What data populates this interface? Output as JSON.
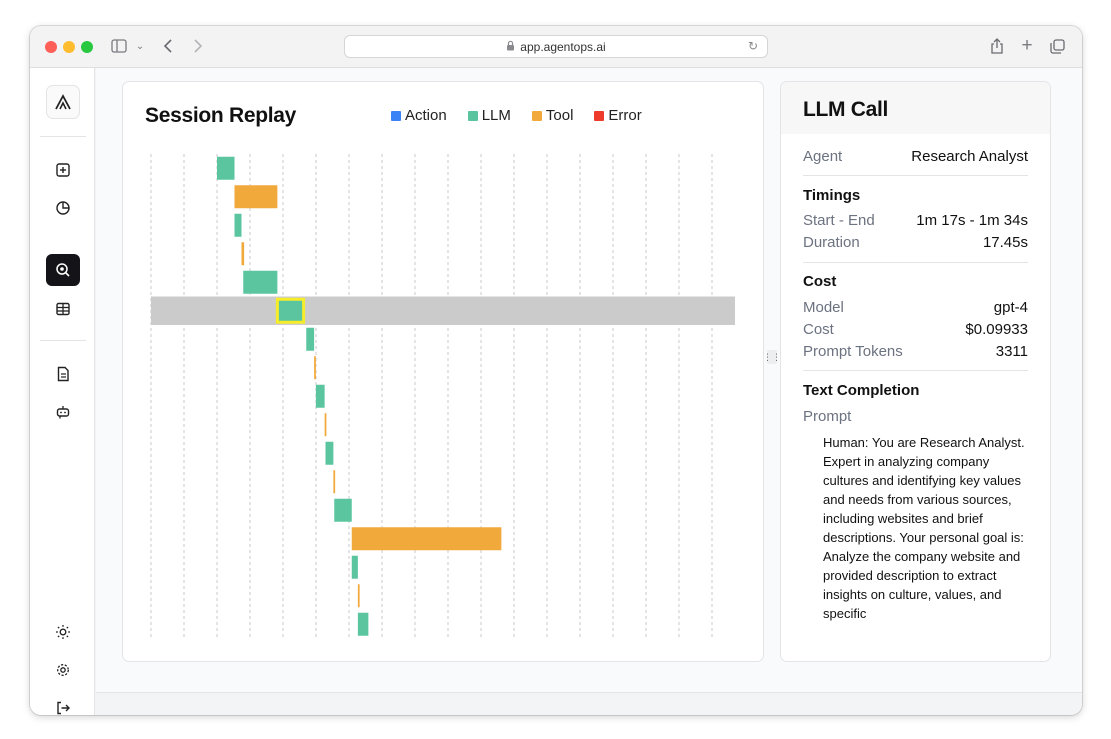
{
  "browser": {
    "url": "app.agentops.ai"
  },
  "sidebar": {
    "items": [
      {
        "name": "new-session-icon"
      },
      {
        "name": "analytics-icon"
      },
      {
        "name": "session-replay-icon",
        "active": true
      },
      {
        "name": "table-icon"
      },
      {
        "name": "document-icon"
      },
      {
        "name": "agent-bot-icon"
      },
      {
        "name": "theme-sun-icon"
      },
      {
        "name": "settings-gear-icon"
      },
      {
        "name": "logout-icon"
      }
    ]
  },
  "replay": {
    "title": "Session Replay",
    "legend": [
      {
        "label": "Action",
        "color": "#3b82f6"
      },
      {
        "label": "LLM",
        "color": "#5bc5a0"
      },
      {
        "label": "Tool",
        "color": "#f2a93b"
      },
      {
        "label": "Error",
        "color": "#ef3b2c"
      }
    ]
  },
  "chart_data": {
    "type": "gantt",
    "selected_index": 5,
    "events": [
      {
        "type": "LLM",
        "start": 0.0,
        "end": 1.0
      },
      {
        "type": "Tool",
        "start": 1.0,
        "end": 3.45
      },
      {
        "type": "LLM",
        "start": 1.0,
        "end": 1.4
      },
      {
        "type": "Tool",
        "start": 1.4,
        "end": 1.55
      },
      {
        "type": "LLM",
        "start": 1.5,
        "end": 3.45
      },
      {
        "type": "LLM",
        "start": 3.45,
        "end": 4.95
      },
      {
        "type": "LLM",
        "start": 5.1,
        "end": 5.55
      },
      {
        "type": "Tool",
        "start": 5.55,
        "end": 5.65
      },
      {
        "type": "LLM",
        "start": 5.65,
        "end": 6.15
      },
      {
        "type": "Tool",
        "start": 6.15,
        "end": 6.25
      },
      {
        "type": "LLM",
        "start": 6.2,
        "end": 6.65
      },
      {
        "type": "Tool",
        "start": 6.65,
        "end": 6.75
      },
      {
        "type": "LLM",
        "start": 6.7,
        "end": 7.7
      },
      {
        "type": "Tool",
        "start": 7.7,
        "end": 16.25
      },
      {
        "type": "LLM",
        "start": 7.7,
        "end": 8.05
      },
      {
        "type": "Tool",
        "start": 8.05,
        "end": 8.15
      },
      {
        "type": "LLM",
        "start": 8.05,
        "end": 8.65
      }
    ]
  },
  "detail": {
    "title": "LLM Call",
    "agent_label": "Agent",
    "agent_value": "Research Analyst",
    "timings_heading": "Timings",
    "start_end_label": "Start - End",
    "start_end_value": "1m 17s - 1m 34s",
    "duration_label": "Duration",
    "duration_value": "17.45s",
    "cost_heading": "Cost",
    "model_label": "Model",
    "model_value": "gpt-4",
    "cost_label": "Cost",
    "cost_value": "$0.09933",
    "tokens_label": "Prompt Tokens",
    "tokens_value": "3311",
    "completion_heading": "Text Completion",
    "prompt_label": "Prompt",
    "prompt_text": "Human: You are Research Analyst. Expert in analyzing company cultures and identifying key values and needs from various sources, including websites and brief descriptions. Your personal goal is: Analyze the company website and provided description to extract insights on culture, values, and specific"
  }
}
